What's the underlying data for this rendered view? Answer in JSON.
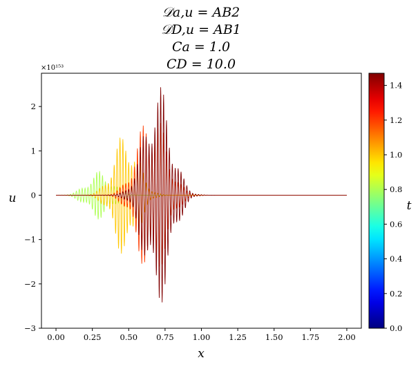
{
  "chart_data": {
    "type": "line",
    "title_lines": [
      "𝒟a,u = AB2",
      "𝒟D,u = AB1",
      "Ca = 1.0",
      "CD = 10.0"
    ],
    "xlabel": "x",
    "ylabel": "u",
    "xlim": [
      -0.1,
      2.1
    ],
    "ylim": [
      -3.0,
      2.75
    ],
    "y_scale_label": "×10¹⁵³",
    "xticks": [
      0.0,
      0.25,
      0.5,
      0.75,
      1.0,
      1.25,
      1.5,
      1.75,
      2.0
    ],
    "xtick_labels": [
      "0.00",
      "0.25",
      "0.50",
      "0.75",
      "1.00",
      "1.25",
      "1.50",
      "1.75",
      "2.00"
    ],
    "yticks": [
      -3,
      -2,
      -1,
      0,
      1,
      2
    ],
    "ytick_labels": [
      "−3",
      "−2",
      "−1",
      "0",
      "1",
      "2"
    ],
    "colorbar": {
      "label": "t",
      "colormap": "jet",
      "range": [
        0.0,
        1.47
      ],
      "ticks": [
        0.0,
        0.2,
        0.4,
        0.6,
        0.8,
        1.0,
        1.2,
        1.4
      ],
      "tick_labels": [
        "0.0",
        "0.2",
        "0.4",
        "0.6",
        "0.8",
        "1.0",
        "1.2",
        "1.4"
      ]
    },
    "series": [
      {
        "name": "t=0.80",
        "t": 0.8,
        "center": 0.3,
        "width": 0.12,
        "amplitude": 0.55,
        "oscillation_period": 0.02
      },
      {
        "name": "t=1.00",
        "t": 1.0,
        "center": 0.48,
        "width": 0.12,
        "amplitude": 1.45,
        "oscillation_period": 0.02
      },
      {
        "name": "t=1.20",
        "t": 1.2,
        "center": 0.66,
        "width": 0.14,
        "amplitude": 2.0,
        "oscillation_period": 0.02
      },
      {
        "name": "t=1.47",
        "t": 1.47,
        "center": 0.7,
        "width": 0.13,
        "amplitude": 2.55,
        "oscillation_period": 0.02
      }
    ]
  }
}
